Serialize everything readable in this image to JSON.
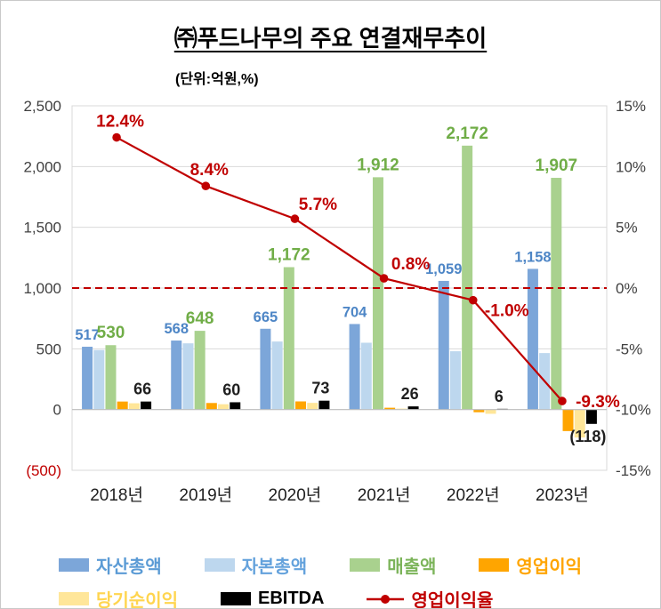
{
  "header": {
    "title": "㈜푸드나무의 주요 연결재무추이",
    "subtitle": "(단위:억원,%)"
  },
  "chart_data": {
    "type": "bar",
    "subtype": "grouped-bars-with-line",
    "categories": [
      "2018년",
      "2019년",
      "2020년",
      "2021년",
      "2022년",
      "2023년"
    ],
    "bar_series": [
      {
        "name": "자산총액",
        "color": "#7CA6D9",
        "values": [
          517,
          568,
          665,
          704,
          1059,
          1158
        ],
        "labels": [
          "517",
          "568",
          "665",
          "704",
          "1,059",
          "1,158"
        ],
        "label_color": "#4E86C6"
      },
      {
        "name": "자본총액",
        "color": "#BDD7EE",
        "values": [
          490,
          545,
          560,
          550,
          480,
          465
        ]
      },
      {
        "name": "매출액",
        "color": "#A9D18E",
        "values": [
          530,
          648,
          1172,
          1912,
          2172,
          1907
        ],
        "labels": [
          "530",
          "648",
          "1,172",
          "1,912",
          "2,172",
          "1,907"
        ],
        "label_color": "#70AD47"
      },
      {
        "name": "영업이익",
        "color": "#FFA500",
        "values": [
          66,
          54,
          67,
          15,
          -22,
          -177
        ]
      },
      {
        "name": "당기순이익",
        "color": "#FFE699",
        "values": [
          52,
          44,
          55,
          8,
          -35,
          -230
        ]
      },
      {
        "name": "EBITDA",
        "color": "#000000",
        "values": [
          66,
          60,
          73,
          26,
          6,
          -118
        ],
        "labels": [
          "66",
          "60",
          "73",
          "26",
          "6",
          "(118)"
        ],
        "label_color": "#1F1F1F"
      }
    ],
    "line_series": {
      "name": "영업이익율",
      "color": "#C00000",
      "values": [
        12.4,
        8.4,
        5.7,
        0.8,
        -1.0,
        -9.3
      ],
      "labels": [
        "12.4%",
        "8.4%",
        "5.7%",
        "0.8%",
        "-1.0%",
        "-9.3%"
      ]
    },
    "left_axis": {
      "min": -500,
      "max": 2500,
      "ticks": [
        "2,500",
        "2,000",
        "1,500",
        "1,000",
        "500",
        "0",
        "(500)"
      ],
      "tick_color": "#404040",
      "negative_color": "#C00000"
    },
    "right_axis": {
      "min": -15,
      "max": 15,
      "ticks": [
        "15%",
        "10%",
        "5%",
        "0%",
        "-5%",
        "-10%",
        "-15%"
      ],
      "tick_color": "#404040"
    },
    "zero_pct_line": {
      "dashed": true,
      "color": "#C00000"
    },
    "grid_color": "#D9D9D9",
    "axis_line_color": "#BFBFBF"
  },
  "legend": {
    "rows": [
      [
        {
          "label": "자산총액",
          "swatch": "#7CA6D9",
          "text_color": "#5B9BD5",
          "type": "rect"
        },
        {
          "label": "자본총액",
          "swatch": "#BDD7EE",
          "text_color": "#64A2DC",
          "type": "rect"
        },
        {
          "label": "매출액",
          "swatch": "#A9D18E",
          "text_color": "#7CB45A",
          "type": "rect"
        },
        {
          "label": "영업이익",
          "swatch": "#FFA500",
          "text_color": "#FFA500",
          "type": "rect"
        }
      ],
      [
        {
          "label": "당기순이익",
          "swatch": "#FFE699",
          "text_color": "#FFD54F",
          "type": "rect"
        },
        {
          "label": "EBITDA",
          "swatch": "#000000",
          "text_color": "#000000",
          "type": "rect"
        },
        {
          "label": "영업이익율",
          "swatch": "#C00000",
          "text_color": "#C00000",
          "type": "line"
        }
      ]
    ]
  }
}
